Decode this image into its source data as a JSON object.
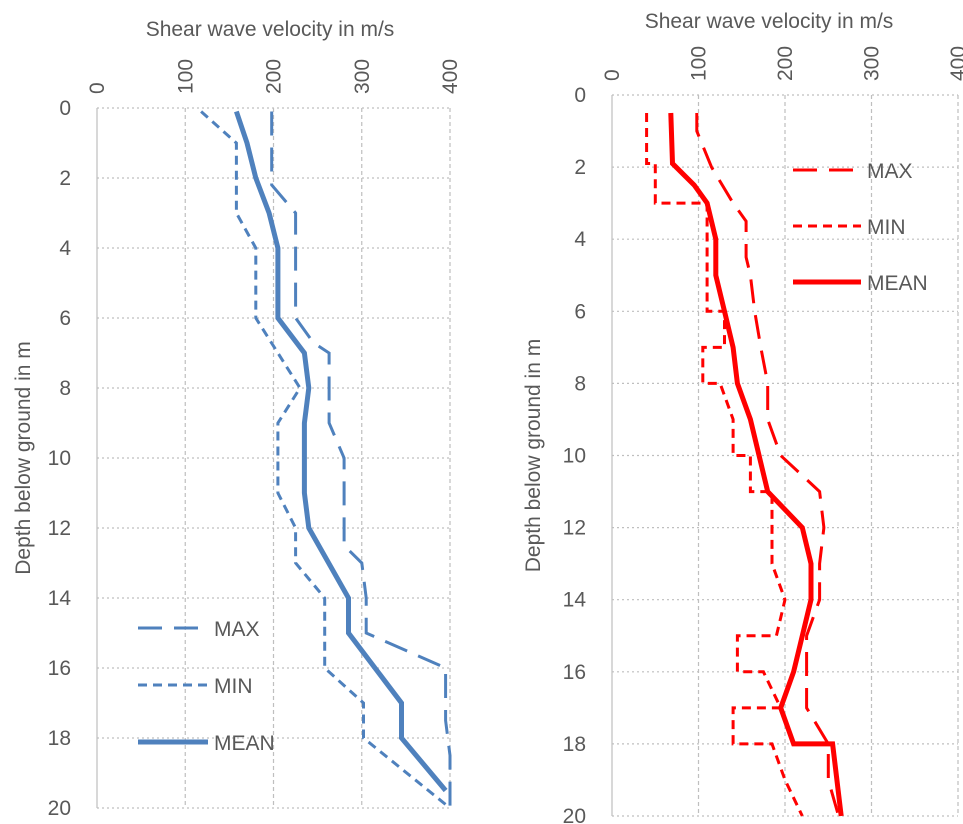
{
  "chart_data": [
    {
      "type": "line",
      "xlabel": "Shear wave velocity in m/s",
      "ylabel": "Depth below ground in m",
      "xlim": [
        0,
        400
      ],
      "ylim": [
        0,
        20
      ],
      "x_axis_position": "top",
      "y_axis_inverted": true,
      "x_ticks": [
        "0",
        "100",
        "200",
        "300",
        "400"
      ],
      "y_ticks": [
        "0",
        "2",
        "4",
        "6",
        "8",
        "10",
        "12",
        "14",
        "16",
        "18",
        "20"
      ],
      "vertical_grid": true,
      "horizontal_grid": true,
      "legend_position": "bottom-left",
      "color": "#4f81bd",
      "series": [
        {
          "name": "MAX",
          "style": "long-dash",
          "points": [
            [
              198,
              0.1
            ],
            [
              198,
              2.2
            ],
            [
              225,
              3
            ],
            [
              225,
              6
            ],
            [
              245,
              6.7
            ],
            [
              263,
              7
            ],
            [
              263,
              9
            ],
            [
              280,
              10
            ],
            [
              280,
              12.5
            ],
            [
              300,
              13
            ],
            [
              305,
              14
            ],
            [
              305,
              15
            ],
            [
              395,
              16
            ],
            [
              395,
              17.5
            ],
            [
              400,
              18.5
            ],
            [
              400,
              20
            ]
          ]
        },
        {
          "name": "MIN",
          "style": "short-dash",
          "points": [
            [
              118,
              0.1
            ],
            [
              158,
              1
            ],
            [
              158,
              3
            ],
            [
              180,
              4
            ],
            [
              180,
              6
            ],
            [
              205,
              7
            ],
            [
              230,
              8
            ],
            [
              205,
              9
            ],
            [
              205,
              11
            ],
            [
              225,
              12
            ],
            [
              225,
              13
            ],
            [
              258,
              14
            ],
            [
              258,
              16
            ],
            [
              302,
              17
            ],
            [
              302,
              18
            ],
            [
              400,
              20
            ]
          ]
        },
        {
          "name": "MEAN",
          "style": "solid",
          "points": [
            [
              158,
              0.1
            ],
            [
              170,
              1
            ],
            [
              180,
              2
            ],
            [
              195,
              3
            ],
            [
              205,
              4
            ],
            [
              205,
              6
            ],
            [
              235,
              7
            ],
            [
              240,
              8
            ],
            [
              235,
              9
            ],
            [
              235,
              11
            ],
            [
              240,
              12
            ],
            [
              285,
              14
            ],
            [
              285,
              15
            ],
            [
              345,
              17
            ],
            [
              345,
              18
            ],
            [
              395,
              19.5
            ]
          ]
        }
      ]
    },
    {
      "type": "line",
      "xlabel": "Shear wave velocity in m/s",
      "ylabel": "Depth below ground in m",
      "xlim": [
        0,
        400
      ],
      "ylim": [
        0,
        20
      ],
      "x_axis_position": "top",
      "y_axis_inverted": true,
      "x_ticks": [
        "0",
        "100",
        "200",
        "300",
        "400"
      ],
      "y_ticks": [
        "0",
        "2",
        "4",
        "6",
        "8",
        "10",
        "12",
        "14",
        "16",
        "18",
        "20"
      ],
      "vertical_grid": true,
      "horizontal_grid": true,
      "legend_position": "top-right",
      "color": "#ff0000",
      "series": [
        {
          "name": "MAX",
          "style": "long-dash",
          "points": [
            [
              98,
              0.5
            ],
            [
              98,
              1
            ],
            [
              115,
              2
            ],
            [
              140,
              3
            ],
            [
              155,
              3.5
            ],
            [
              155,
              4.5
            ],
            [
              160,
              5
            ],
            [
              165,
              6
            ],
            [
              172,
              7
            ],
            [
              180,
              8
            ],
            [
              180,
              9
            ],
            [
              195,
              10
            ],
            [
              240,
              11
            ],
            [
              245,
              12
            ],
            [
              240,
              13
            ],
            [
              240,
              14
            ],
            [
              225,
              15
            ],
            [
              225,
              16
            ],
            [
              225,
              17
            ],
            [
              250,
              18
            ],
            [
              250,
              19
            ],
            [
              262,
              20
            ]
          ]
        },
        {
          "name": "MIN",
          "style": "short-dash",
          "points": [
            [
              40,
              0.5
            ],
            [
              40,
              1.9
            ],
            [
              50,
              1.9
            ],
            [
              50,
              3
            ],
            [
              110,
              3
            ],
            [
              110,
              6
            ],
            [
              130,
              6
            ],
            [
              130,
              7
            ],
            [
              105,
              7
            ],
            [
              105,
              8
            ],
            [
              125,
              8
            ],
            [
              140,
              9
            ],
            [
              140,
              10
            ],
            [
              160,
              10
            ],
            [
              160,
              11
            ],
            [
              185,
              11
            ],
            [
              185,
              12
            ],
            [
              185,
              13
            ],
            [
              200,
              14
            ],
            [
              190,
              15
            ],
            [
              145,
              15
            ],
            [
              145,
              16
            ],
            [
              175,
              16
            ],
            [
              195,
              17
            ],
            [
              140,
              17
            ],
            [
              140,
              18
            ],
            [
              185,
              18
            ],
            [
              200,
              19
            ],
            [
              220,
              20
            ]
          ]
        },
        {
          "name": "MEAN",
          "style": "solid",
          "points": [
            [
              68,
              0.5
            ],
            [
              70,
              1.9
            ],
            [
              95,
              2.5
            ],
            [
              110,
              3
            ],
            [
              120,
              4
            ],
            [
              120,
              5
            ],
            [
              130,
              6
            ],
            [
              140,
              7
            ],
            [
              145,
              8
            ],
            [
              160,
              9
            ],
            [
              180,
              11
            ],
            [
              220,
              12
            ],
            [
              230,
              13
            ],
            [
              230,
              14
            ],
            [
              220,
              15
            ],
            [
              210,
              16
            ],
            [
              195,
              17
            ],
            [
              210,
              18
            ],
            [
              255,
              18
            ],
            [
              265,
              20
            ]
          ]
        }
      ]
    }
  ]
}
